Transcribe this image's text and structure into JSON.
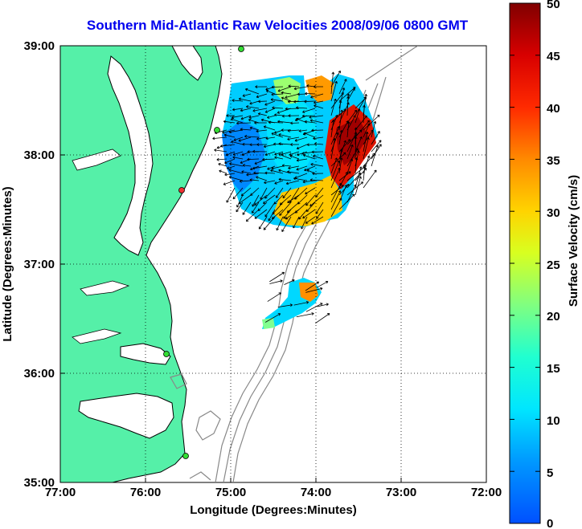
{
  "title": "Southern Mid-Atlantic Raw Velocities 2008/09/06 0800 GMT",
  "map": {
    "xlabel": "Longitude (Degrees:Minutes)",
    "ylabel": "Latitude (Degrees:Minutes)",
    "x_ticks": [
      "77:00",
      "76:00",
      "75:00",
      "74:00",
      "73:00",
      "72:00"
    ],
    "y_ticks": [
      "39:00",
      "38:00",
      "37:00",
      "36:00",
      "35:00"
    ],
    "land_color": "#55f0a8",
    "grid": "dotted"
  },
  "colorbar": {
    "label": "Surface Velocity (cm/s)",
    "range": [
      0,
      50
    ],
    "ticks": [
      "50",
      "45",
      "40",
      "35",
      "30",
      "25",
      "20",
      "15",
      "10",
      "5",
      "0"
    ],
    "colormap": "jet"
  },
  "stations": [
    {
      "name": "station",
      "color": "#33dd33"
    },
    {
      "name": "station",
      "color": "#33dd33"
    },
    {
      "name": "station",
      "color": "#ee3333"
    },
    {
      "name": "station",
      "color": "#33dd33"
    },
    {
      "name": "station",
      "color": "#33dd33"
    }
  ]
}
